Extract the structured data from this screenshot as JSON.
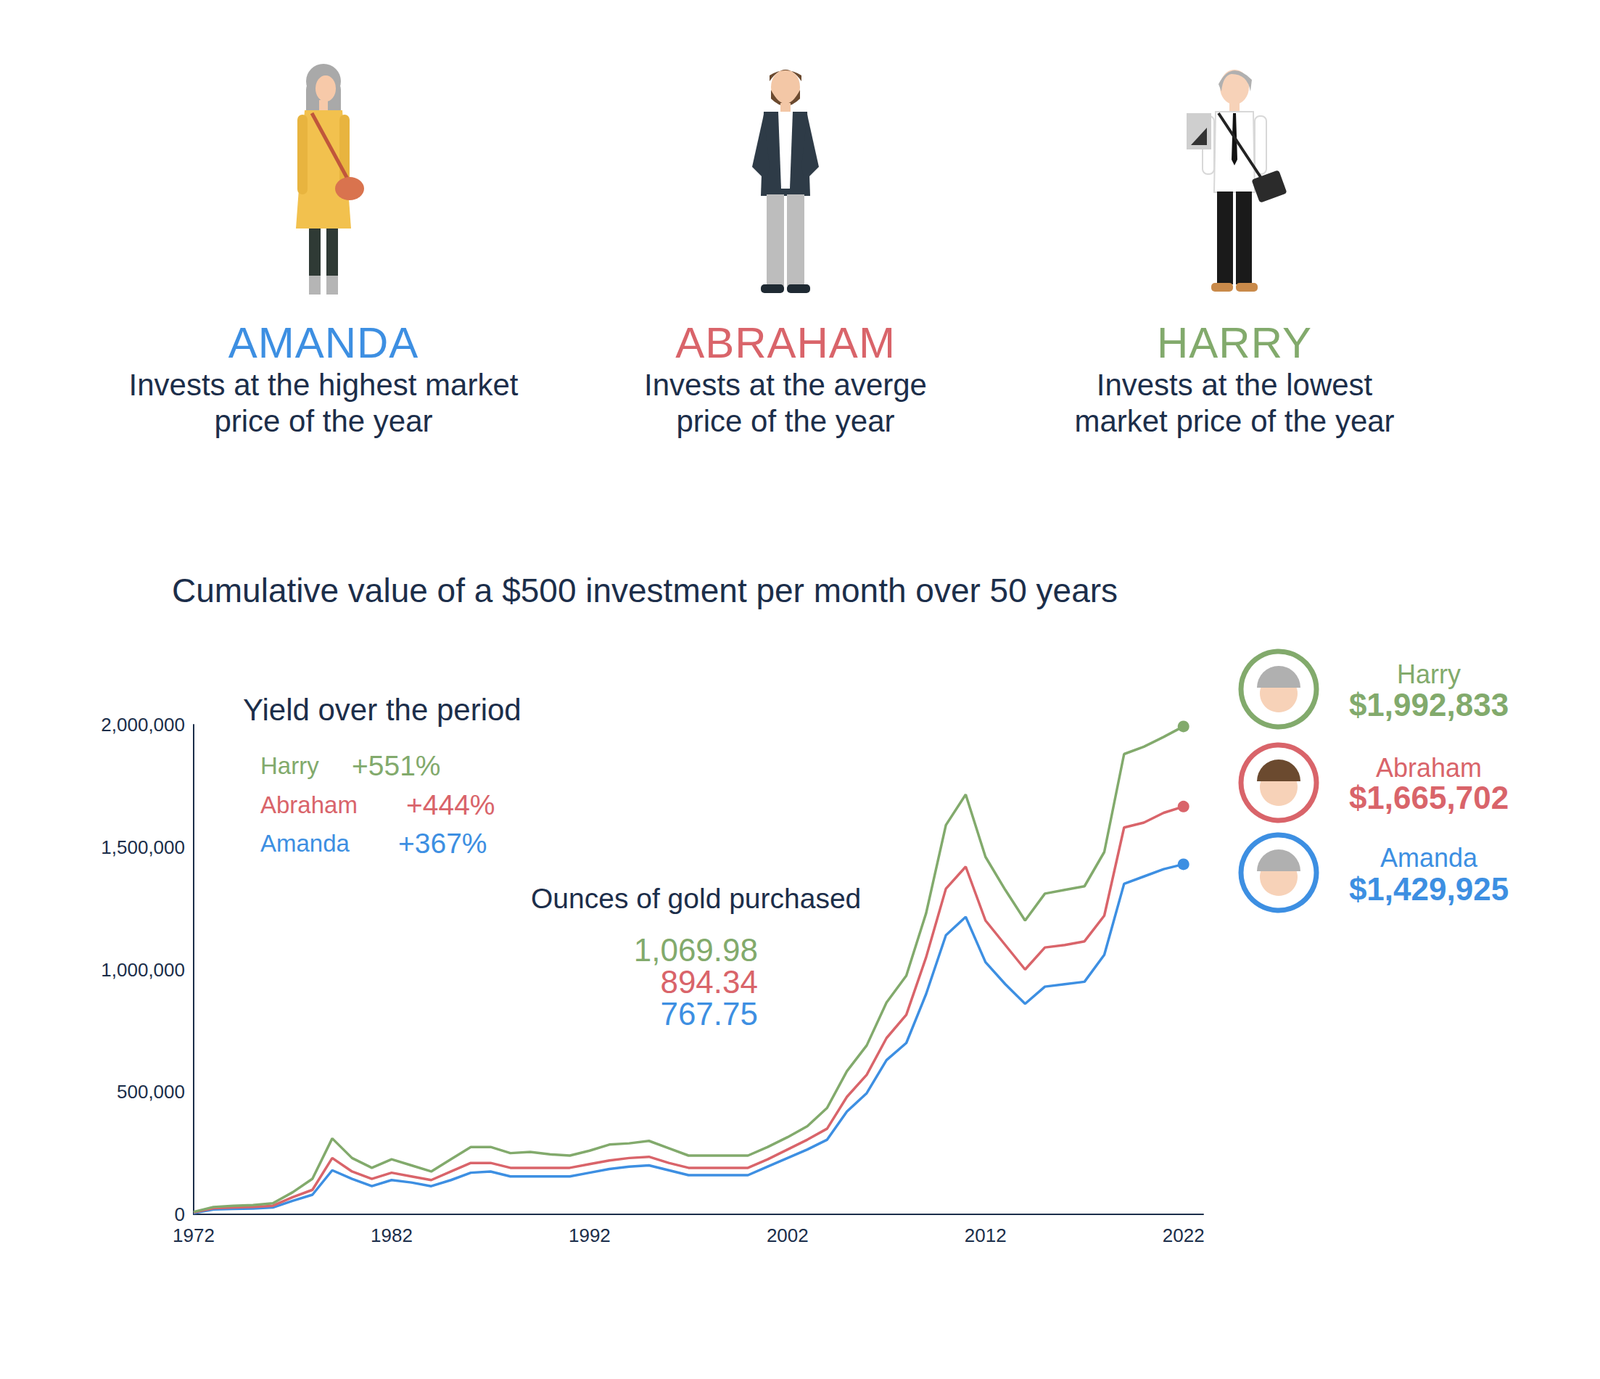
{
  "people": [
    {
      "name": "AMANDA",
      "description": [
        "Invests at the highest market",
        "price of the year"
      ],
      "color": "#3d8fe2"
    },
    {
      "name": "ABRAHAM",
      "description": [
        "Invests at the averge",
        "price of the year"
      ],
      "color": "#d9646a"
    },
    {
      "name": "HARRY",
      "description": [
        "Invests at the lowest",
        "market price of the year"
      ],
      "color": "#82aa6c"
    }
  ],
  "chart_data": {
    "type": "line",
    "title": "Cumulative value of a $500 investment per month over 50 years",
    "annotations": {
      "yield_title": "Yield over the period",
      "ounces_title": "Ounces of gold purchased"
    },
    "x": [
      1972,
      1973,
      1974,
      1975,
      1976,
      1977,
      1978,
      1979,
      1980,
      1981,
      1982,
      1983,
      1984,
      1985,
      1986,
      1987,
      1988,
      1989,
      1990,
      1991,
      1992,
      1993,
      1994,
      1995,
      1996,
      1997,
      1998,
      1999,
      2000,
      2001,
      2002,
      2003,
      2004,
      2005,
      2006,
      2007,
      2008,
      2009,
      2010,
      2011,
      2012,
      2013,
      2014,
      2015,
      2016,
      2017,
      2018,
      2019,
      2020,
      2021,
      2022
    ],
    "series": [
      {
        "name": "Harry",
        "color": "#82aa6c",
        "yield": "+551%",
        "ounces": "1,069.98",
        "final_label": "$1,992,833",
        "values": [
          10000,
          30000,
          35000,
          38000,
          45000,
          90000,
          145000,
          310000,
          230000,
          190000,
          225000,
          200000,
          175000,
          225000,
          275000,
          275000,
          250000,
          255000,
          245000,
          240000,
          260000,
          285000,
          290000,
          300000,
          270000,
          240000,
          240000,
          240000,
          240000,
          275000,
          315000,
          360000,
          435000,
          585000,
          690000,
          865000,
          975000,
          1230000,
          1590000,
          1715000,
          1460000,
          1325000,
          1200000,
          1310000,
          1325000,
          1340000,
          1480000,
          1880000,
          1910000,
          1950000,
          1992833
        ]
      },
      {
        "name": "Abraham",
        "color": "#d9646a",
        "yield": "+444%",
        "ounces": "894.34",
        "final_label": "$1,665,702",
        "values": [
          8000,
          25000,
          28000,
          30000,
          35000,
          70000,
          100000,
          230000,
          175000,
          145000,
          170000,
          155000,
          140000,
          175000,
          210000,
          210000,
          190000,
          190000,
          190000,
          190000,
          205000,
          220000,
          230000,
          235000,
          210000,
          190000,
          190000,
          190000,
          190000,
          225000,
          265000,
          305000,
          350000,
          480000,
          570000,
          720000,
          815000,
          1050000,
          1330000,
          1420000,
          1200000,
          1100000,
          1000000,
          1090000,
          1100000,
          1115000,
          1220000,
          1580000,
          1600000,
          1640000,
          1665702
        ]
      },
      {
        "name": "Amanda",
        "color": "#3d8fe2",
        "yield": "+367%",
        "ounces": "767.75",
        "final_label": "$1,429,925",
        "values": [
          5000,
          20000,
          22000,
          24000,
          28000,
          55000,
          80000,
          180000,
          145000,
          115000,
          140000,
          130000,
          115000,
          140000,
          170000,
          175000,
          155000,
          155000,
          155000,
          155000,
          170000,
          185000,
          195000,
          200000,
          180000,
          160000,
          160000,
          160000,
          160000,
          195000,
          230000,
          265000,
          305000,
          420000,
          495000,
          630000,
          700000,
          900000,
          1140000,
          1215000,
          1030000,
          940000,
          860000,
          930000,
          940000,
          950000,
          1060000,
          1350000,
          1380000,
          1410000,
          1429925
        ]
      }
    ],
    "xlim": [
      1972,
      2023
    ],
    "xticks": [
      1972,
      1982,
      1992,
      2002,
      2012,
      2022
    ],
    "ylim": [
      0,
      2000000
    ],
    "yticks": [
      0,
      {
        "value": 500000,
        "label": "500,000"
      },
      {
        "value": 1000000,
        "label": "1,000,000"
      },
      {
        "value": 1500000,
        "label": "1,500,000"
      },
      {
        "value": 2000000,
        "label": "2,000,000"
      }
    ],
    "grid": false
  }
}
